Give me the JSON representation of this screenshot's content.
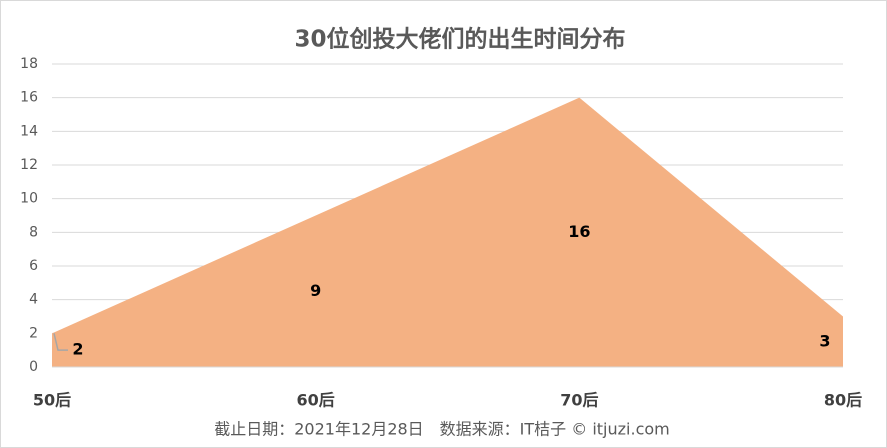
{
  "chart_data": {
    "type": "area",
    "title": "30位创投大佬们的出生时间分布",
    "categories": [
      "50后",
      "60后",
      "70后",
      "80后"
    ],
    "values": [
      2,
      9,
      16,
      3
    ],
    "color": "#f4b183",
    "ylim": [
      0,
      18
    ],
    "yticks": [
      0,
      2,
      4,
      6,
      8,
      10,
      12,
      14,
      16,
      18
    ],
    "grid": true,
    "note": "截止日期：2021年12月28日　数据来源：IT桔子 © itjuzi.com"
  }
}
